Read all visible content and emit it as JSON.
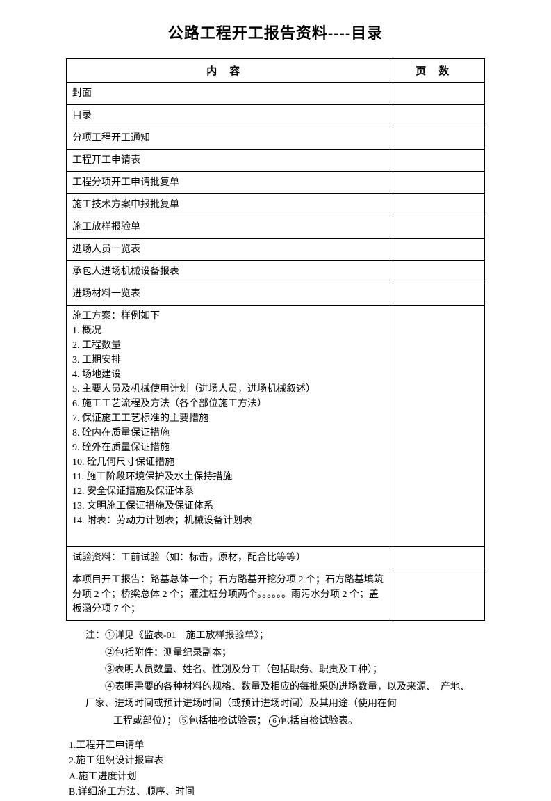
{
  "title": "公路工程开工报告资料----目录",
  "table": {
    "header_content": "内容",
    "header_page": "页数",
    "rows": [
      {
        "content": "封面",
        "page": ""
      },
      {
        "content": "目录",
        "page": ""
      },
      {
        "content": "分项工程开工通知",
        "page": ""
      },
      {
        "content": "工程开工申请表",
        "page": ""
      },
      {
        "content": "工程分项开工申请批复单",
        "page": ""
      },
      {
        "content": "施工技术方案申报批复单",
        "page": ""
      },
      {
        "content": "施工放样报验单",
        "page": ""
      },
      {
        "content": "进场人员一览表",
        "page": ""
      },
      {
        "content": "承包人进场机械设备报表",
        "page": ""
      },
      {
        "content": "进场材料一览表",
        "page": ""
      }
    ],
    "plan_row": "施工方案：样例如下\n1. 概况\n2. 工程数量\n3. 工期安排\n4. 场地建设\n5. 主要人员及机械使用计划（进场人员，进场机械叙述）\n6. 施工工艺流程及方法（各个部位施工方法）\n7. 保证施工工艺标准的主要措施\n8. 砼内在质量保证措施\n9. 砼外在质量保证措施\n10. 砼几何尺寸保证措施\n11. 施工阶段环境保护及水土保持措施\n12. 安全保证措施及保证体系\n13. 文明施工保证措施及保证体系\n14. 附表：劳动力计划表；机械设备计划表\n　",
    "test_row": "试验资料：工前试验（如：标击，原材，配合比等等）",
    "project_row": "本项目开工报告：路基总体一个；石方路基开挖分项 2 个；石方路基填筑分项 2 个；桥梁总体 2 个；灌注桩分项两个。。。。。。雨污水分项 2 个；盖板涵分项 7 个；"
  },
  "notes": {
    "line1": "注：①详见《监表-01　施工放样报验单》；",
    "line2": "②包括附件：测量纪录副本；",
    "line3": "③表明人员数量、姓名、性别及分工（包括职务、职责及工种）；",
    "line4": "④表明需要的各种材料的规格、数量及相应的每批采购进场数量，以及来源、　产地、",
    "line5": "厂家、进场时间或预计进场时间（或预计进场时间）及其用途（使用在何",
    "line6_prefix": "工程或部位）；",
    "line6_circle5": "⑤",
    "line6_mid": "包括抽检试验表；",
    "line6_circle6": "⑥",
    "line6_suffix": "包括自检试验表。"
  },
  "bottom_list": {
    "item1": "1.工程开工申请单",
    "item2": "2.施工组织设计报审表",
    "itemA": "A.施工进度计划",
    "itemB": "B.详细施工方法、顺序、时间"
  }
}
